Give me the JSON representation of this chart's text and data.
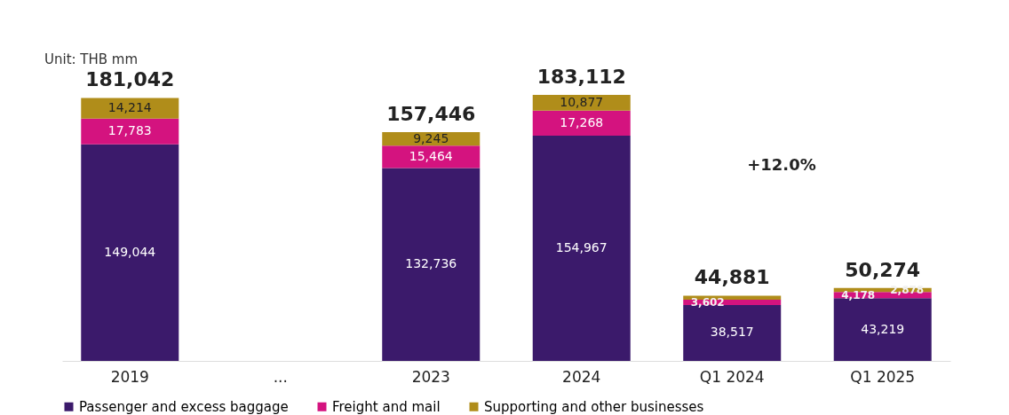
{
  "chart_data": {
    "type": "bar",
    "stacked": true,
    "categories": [
      "2019",
      "...",
      "2023",
      "2024",
      "Q1 2024",
      "Q1 2025"
    ],
    "series": [
      {
        "name": "Passenger and excess baggage",
        "color": "#3b1a6b",
        "values": [
          149044,
          null,
          132736,
          154967,
          38517,
          43219
        ],
        "value_labels": [
          "149,044",
          null,
          "132,736",
          "154,967",
          "38,517",
          "43,219"
        ]
      },
      {
        "name": "Freight and mail",
        "color": "#d4137f",
        "values": [
          17783,
          null,
          15464,
          17268,
          3602,
          4178
        ],
        "value_labels": [
          "17,783",
          null,
          "15,464",
          "17,268",
          "3,602",
          "4,178"
        ]
      },
      {
        "name": "Supporting and other businesses",
        "color": "#b08d1a",
        "values": [
          14214,
          null,
          9245,
          10877,
          2762,
          2878
        ],
        "value_labels": [
          "14,214",
          null,
          "9,245",
          "10,877",
          null,
          "2,878"
        ]
      }
    ],
    "totals": [
      "181,042",
      null,
      "157,446",
      "183,112",
      "44,881",
      "50,274"
    ],
    "tick_labels": "x",
    "legend": "bottom",
    "grid": false,
    "annotations": [
      "Unit: THB mm",
      "+12.0%"
    ]
  }
}
